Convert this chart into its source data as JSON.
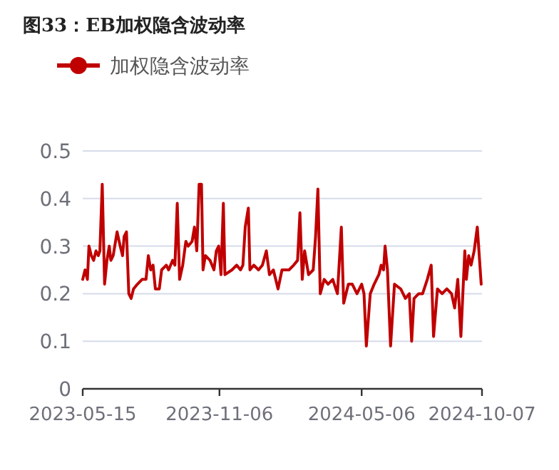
{
  "chart_data": {
    "type": "line",
    "title": "图33：EB加权隐含波动率",
    "x": [
      "2023-05-15",
      "2023-05-18",
      "2023-05-21",
      "2023-05-23",
      "2023-05-26",
      "2023-05-29",
      "2023-06-01",
      "2023-06-04",
      "2023-06-06",
      "2023-06-09",
      "2023-06-12",
      "2023-06-15",
      "2023-06-18",
      "2023-06-20",
      "2023-06-23",
      "2023-06-28",
      "2023-07-02",
      "2023-07-05",
      "2023-07-07",
      "2023-07-10",
      "2023-07-13",
      "2023-07-16",
      "2023-07-19",
      "2023-07-24",
      "2023-07-30",
      "2023-08-04",
      "2023-08-07",
      "2023-08-10",
      "2023-08-13",
      "2023-08-16",
      "2023-08-21",
      "2023-08-24",
      "2023-08-30",
      "2023-09-02",
      "2023-09-07",
      "2023-09-10",
      "2023-09-13",
      "2023-09-16",
      "2023-09-20",
      "2023-09-24",
      "2023-09-27",
      "2023-10-02",
      "2023-10-05",
      "2023-10-08",
      "2023-10-11",
      "2023-10-14",
      "2023-10-16",
      "2023-10-19",
      "2023-10-25",
      "2023-10-30",
      "2023-11-02",
      "2023-11-05",
      "2023-11-08",
      "2023-11-11",
      "2023-11-13",
      "2023-11-22",
      "2023-11-28",
      "2023-12-03",
      "2023-12-06",
      "2023-12-09",
      "2023-12-13",
      "2023-12-15",
      "2023-12-20",
      "2023-12-26",
      "2023-12-31",
      "2024-01-05",
      "2024-01-09",
      "2024-01-14",
      "2024-01-20",
      "2024-01-25",
      "2024-02-03",
      "2024-02-09",
      "2024-02-14",
      "2024-02-17",
      "2024-02-20",
      "2024-02-23",
      "2024-02-28",
      "2024-03-05",
      "2024-03-08",
      "2024-03-11",
      "2024-03-14",
      "2024-03-19",
      "2024-03-24",
      "2024-03-30",
      "2024-04-05",
      "2024-04-10",
      "2024-04-13",
      "2024-04-19",
      "2024-04-24",
      "2024-04-30",
      "2024-05-06",
      "2024-05-09",
      "2024-05-12",
      "2024-05-17",
      "2024-05-22",
      "2024-05-28",
      "2024-05-31",
      "2024-06-03",
      "2024-06-05",
      "2024-06-08",
      "2024-06-12",
      "2024-06-17",
      "2024-06-25",
      "2024-07-01",
      "2024-07-06",
      "2024-07-09",
      "2024-07-12",
      "2024-07-18",
      "2024-07-23",
      "2024-07-29",
      "2024-08-03",
      "2024-08-06",
      "2024-08-11",
      "2024-08-17",
      "2024-08-23",
      "2024-08-29",
      "2024-09-02",
      "2024-09-06",
      "2024-09-10",
      "2024-09-15",
      "2024-09-17",
      "2024-09-20",
      "2024-09-23",
      "2024-09-27",
      "2024-10-01",
      "2024-10-06"
    ],
    "series": [
      {
        "name": "加权隐含波动率",
        "color": "#c00000",
        "values": [
          0.23,
          0.25,
          0.23,
          0.3,
          0.28,
          0.27,
          0.29,
          0.28,
          0.29,
          0.43,
          0.22,
          0.27,
          0.3,
          0.27,
          0.28,
          0.33,
          0.3,
          0.28,
          0.32,
          0.33,
          0.2,
          0.19,
          0.21,
          0.22,
          0.23,
          0.23,
          0.28,
          0.25,
          0.26,
          0.21,
          0.21,
          0.25,
          0.26,
          0.25,
          0.27,
          0.26,
          0.39,
          0.23,
          0.26,
          0.31,
          0.3,
          0.31,
          0.34,
          0.29,
          0.43,
          0.43,
          0.25,
          0.28,
          0.27,
          0.25,
          0.29,
          0.3,
          0.24,
          0.39,
          0.24,
          0.25,
          0.26,
          0.25,
          0.26,
          0.34,
          0.38,
          0.25,
          0.26,
          0.25,
          0.26,
          0.29,
          0.24,
          0.25,
          0.21,
          0.25,
          0.25,
          0.26,
          0.27,
          0.37,
          0.23,
          0.29,
          0.24,
          0.25,
          0.32,
          0.42,
          0.2,
          0.23,
          0.22,
          0.23,
          0.2,
          0.34,
          0.18,
          0.22,
          0.22,
          0.2,
          0.22,
          0.2,
          0.09,
          0.2,
          0.22,
          0.24,
          0.26,
          0.25,
          0.3,
          0.25,
          0.09,
          0.22,
          0.21,
          0.19,
          0.2,
          0.1,
          0.19,
          0.2,
          0.2,
          0.23,
          0.26,
          0.11,
          0.21,
          0.2,
          0.21,
          0.2,
          0.17,
          0.23,
          0.11,
          0.29,
          0.23,
          0.28,
          0.26,
          0.29,
          0.34,
          0.22
        ]
      }
    ],
    "xlim": [
      "2023-05-15",
      "2024-10-07"
    ],
    "xticks": [
      {
        "value": "2023-05-15",
        "label": "2023-05-15"
      },
      {
        "value": "2023-11-06",
        "label": "2023-11-06"
      },
      {
        "value": "2024-05-06",
        "label": "2024-05-06"
      },
      {
        "value": "2024-10-07",
        "label": "2024-10-07"
      }
    ],
    "ylim": [
      0,
      0.5
    ],
    "yticks": [
      0,
      0.1,
      0.2,
      0.3,
      0.4,
      0.5
    ],
    "grid": "y",
    "legend": "top left"
  }
}
